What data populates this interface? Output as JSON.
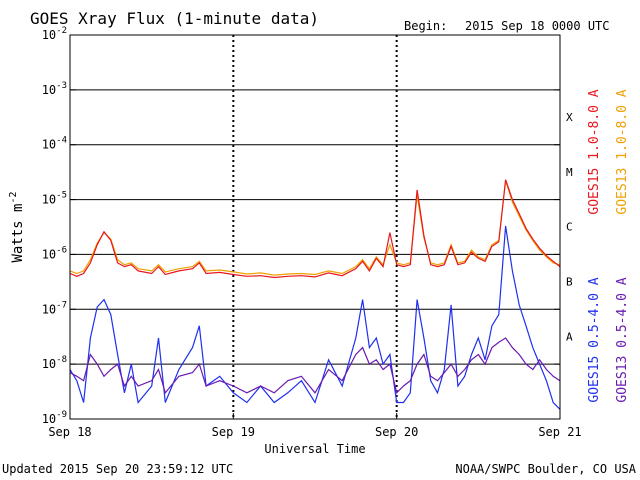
{
  "header": {
    "title": "GOES Xray Flux (1-minute data)",
    "begin_label": "Begin:",
    "begin_value": "2015 Sep 18 0000 UTC"
  },
  "footer": {
    "updated": "Updated 2015 Sep 20 23:59:12 UTC",
    "credit": "NOAA/SWPC Boulder, CO USA"
  },
  "chart_data": {
    "type": "line",
    "title": "GOES Xray Flux (1-minute data)",
    "xlabel": "Universal Time",
    "ylabel_base": "Watts m",
    "ylabel_exp": "-2",
    "yscale": "log",
    "ylim": [
      1e-09,
      0.01
    ],
    "xlim": [
      0,
      72
    ],
    "x_unit": "hours since 2015 Sep 18 0000 UTC",
    "x_ticks": [
      {
        "x": 0,
        "label": "Sep 18"
      },
      {
        "x": 24,
        "label": "Sep 19"
      },
      {
        "x": 48,
        "label": "Sep 20"
      },
      {
        "x": 72,
        "label": "Sep 21"
      }
    ],
    "y_ticks": [
      {
        "v": 0.01,
        "base": "10",
        "exp": "-2"
      },
      {
        "v": 0.001,
        "base": "10",
        "exp": "-3"
      },
      {
        "v": 0.0001,
        "base": "10",
        "exp": "-4"
      },
      {
        "v": 1e-05,
        "base": "10",
        "exp": "-5"
      },
      {
        "v": 1e-06,
        "base": "10",
        "exp": "-6"
      },
      {
        "v": 1e-07,
        "base": "10",
        "exp": "-7"
      },
      {
        "v": 1e-08,
        "base": "10",
        "exp": "-8"
      },
      {
        "v": 1e-09,
        "base": "10",
        "exp": "-9"
      }
    ],
    "flare_classes": [
      {
        "label": "X",
        "v": 0.00032
      },
      {
        "label": "M",
        "v": 3.2e-05
      },
      {
        "label": "C",
        "v": 3.2e-06
      },
      {
        "label": "B",
        "v": 3.2e-07
      },
      {
        "label": "A",
        "v": 3.2e-08
      }
    ],
    "legend": [
      {
        "label": "GOES15 1.0-8.0 A",
        "color": "#e8171f"
      },
      {
        "label": "GOES13 1.0-8.0 A",
        "color": "#f0a000"
      },
      {
        "label": "GOES15 0.5-4.0 A",
        "color": "#1f2ff0"
      },
      {
        "label": "GOES13 0.5-4.0 A",
        "color": "#6a1ab0"
      }
    ],
    "series": [
      {
        "name": "GOES13 1.0-8.0 A",
        "color": "#f0a000",
        "x": [
          0,
          1,
          2,
          3,
          4,
          5,
          6,
          7,
          8,
          9,
          10,
          12,
          13,
          14,
          16,
          18,
          19,
          20,
          22,
          24,
          26,
          28,
          30,
          32,
          34,
          36,
          38,
          40,
          42,
          43,
          44,
          45,
          46,
          47,
          48,
          49,
          50,
          51,
          52,
          53,
          54,
          55,
          56,
          57,
          58,
          59,
          60,
          61,
          62,
          63,
          64,
          65,
          66,
          67,
          68,
          69,
          70,
          71,
          72
        ],
        "y": [
          5e-07,
          4.5e-07,
          5e-07,
          8e-07,
          1.6e-06,
          2.5e-06,
          1.9e-06,
          8e-07,
          6.5e-07,
          7e-07,
          5.5e-07,
          5e-07,
          6.5e-07,
          4.8e-07,
          5.5e-07,
          6e-07,
          7.5e-07,
          5e-07,
          5.2e-07,
          4.8e-07,
          4.4e-07,
          4.6e-07,
          4.2e-07,
          4.4e-07,
          4.5e-07,
          4.3e-07,
          5e-07,
          4.5e-07,
          6e-07,
          8e-07,
          5.5e-07,
          9e-07,
          6.5e-07,
          1.5e-06,
          7e-07,
          6.5e-07,
          7e-07,
          1.2e-05,
          2e-06,
          7e-07,
          6.5e-07,
          7e-07,
          1.5e-06,
          7e-07,
          7.5e-07,
          1.2e-06,
          9e-07,
          8e-07,
          1.5e-06,
          1.8e-06,
          2.2e-05,
          9e-06,
          5e-06,
          2.8e-06,
          1.8e-06,
          1.2e-06,
          9e-07,
          7e-07,
          6.5e-07
        ]
      },
      {
        "name": "GOES15 1.0-8.0 A",
        "color": "#e8171f",
        "x": [
          0,
          1,
          2,
          3,
          4,
          5,
          6,
          7,
          8,
          9,
          10,
          12,
          13,
          14,
          16,
          18,
          19,
          20,
          22,
          24,
          26,
          28,
          30,
          32,
          34,
          36,
          38,
          40,
          42,
          43,
          44,
          45,
          46,
          47,
          48,
          49,
          50,
          51,
          52,
          53,
          54,
          55,
          56,
          57,
          58,
          59,
          60,
          61,
          62,
          63,
          64,
          65,
          66,
          67,
          68,
          69,
          70,
          71,
          72
        ],
        "y": [
          4.5e-07,
          4e-07,
          4.5e-07,
          7e-07,
          1.5e-06,
          2.6e-06,
          1.8e-06,
          7e-07,
          6e-07,
          6.5e-07,
          5e-07,
          4.5e-07,
          6e-07,
          4.3e-07,
          5e-07,
          5.5e-07,
          7e-07,
          4.5e-07,
          4.7e-07,
          4.3e-07,
          4e-07,
          4.1e-07,
          3.8e-07,
          4e-07,
          4.1e-07,
          3.9e-07,
          4.6e-07,
          4.1e-07,
          5.5e-07,
          7.5e-07,
          5e-07,
          8.5e-07,
          6e-07,
          2.5e-06,
          6.5e-07,
          6e-07,
          6.5e-07,
          1.5e-05,
          2.2e-06,
          6.5e-07,
          6e-07,
          6.5e-07,
          1.4e-06,
          6.5e-07,
          7e-07,
          1.1e-06,
          8.5e-07,
          7.5e-07,
          1.4e-06,
          1.7e-06,
          2.3e-05,
          1e-05,
          5.5e-06,
          3e-06,
          1.9e-06,
          1.3e-06,
          9.5e-07,
          7.5e-07,
          6e-07
        ]
      },
      {
        "name": "GOES15 0.5-4.0 A",
        "color": "#1f2ff0",
        "x": [
          0,
          1,
          2,
          3,
          4,
          5,
          6,
          7,
          8,
          9,
          10,
          12,
          13,
          14,
          16,
          18,
          19,
          20,
          22,
          24,
          26,
          28,
          30,
          32,
          34,
          36,
          38,
          40,
          42,
          43,
          44,
          45,
          46,
          47,
          48,
          49,
          50,
          51,
          52,
          53,
          54,
          55,
          56,
          57,
          58,
          59,
          60,
          61,
          62,
          63,
          64,
          65,
          66,
          67,
          68,
          69,
          70,
          71,
          72
        ],
        "y": [
          8e-09,
          5e-09,
          2e-09,
          3e-08,
          1.1e-07,
          1.5e-07,
          8e-08,
          1.5e-08,
          3e-09,
          1e-08,
          2e-09,
          4e-09,
          3e-08,
          2e-09,
          8e-09,
          2e-08,
          5e-08,
          4e-09,
          6e-09,
          3e-09,
          2e-09,
          4e-09,
          2e-09,
          3e-09,
          5e-09,
          2e-09,
          1.2e-08,
          4e-09,
          3e-08,
          1.5e-07,
          2e-08,
          3e-08,
          1e-08,
          1.5e-08,
          2e-09,
          2e-09,
          3e-09,
          1.5e-07,
          3e-08,
          5e-09,
          3e-09,
          8e-09,
          1.2e-07,
          4e-09,
          6e-09,
          1.5e-08,
          3e-08,
          1.2e-08,
          5e-08,
          8e-08,
          3.3e-06,
          5e-07,
          1.2e-07,
          5e-08,
          2e-08,
          1e-08,
          5e-09,
          2e-09,
          1.5e-09
        ]
      },
      {
        "name": "GOES13 0.5-4.0 A",
        "color": "#6a1ab0",
        "x": [
          0,
          1,
          2,
          3,
          4,
          5,
          6,
          7,
          8,
          9,
          10,
          12,
          13,
          14,
          16,
          18,
          19,
          20,
          22,
          24,
          26,
          28,
          30,
          32,
          34,
          36,
          38,
          40,
          42,
          43,
          44,
          45,
          46,
          47,
          48,
          49,
          50,
          51,
          52,
          53,
          54,
          55,
          56,
          57,
          58,
          59,
          60,
          61,
          62,
          63,
          64,
          65,
          66,
          67,
          68,
          69,
          70,
          71,
          72
        ],
        "y": [
          7e-09,
          6e-09,
          5e-09,
          1.5e-08,
          1e-08,
          6e-09,
          8e-09,
          1e-08,
          4e-09,
          6e-09,
          4e-09,
          5e-09,
          8e-09,
          3e-09,
          6e-09,
          7e-09,
          1e-08,
          4e-09,
          5e-09,
          4e-09,
          3e-09,
          4e-09,
          3e-09,
          5e-09,
          6e-09,
          3e-09,
          8e-09,
          5e-09,
          1.5e-08,
          2e-08,
          1e-08,
          1.2e-08,
          8e-09,
          1e-08,
          3e-09,
          4e-09,
          5e-09,
          1e-08,
          1.5e-08,
          6e-09,
          5e-09,
          7e-09,
          1e-08,
          6e-09,
          8e-09,
          1.2e-08,
          1.5e-08,
          1e-08,
          2e-08,
          2.5e-08,
          3e-08,
          2e-08,
          1.5e-08,
          1e-08,
          8e-09,
          1.2e-08,
          8e-09,
          6e-09,
          5e-09
        ]
      }
    ]
  }
}
